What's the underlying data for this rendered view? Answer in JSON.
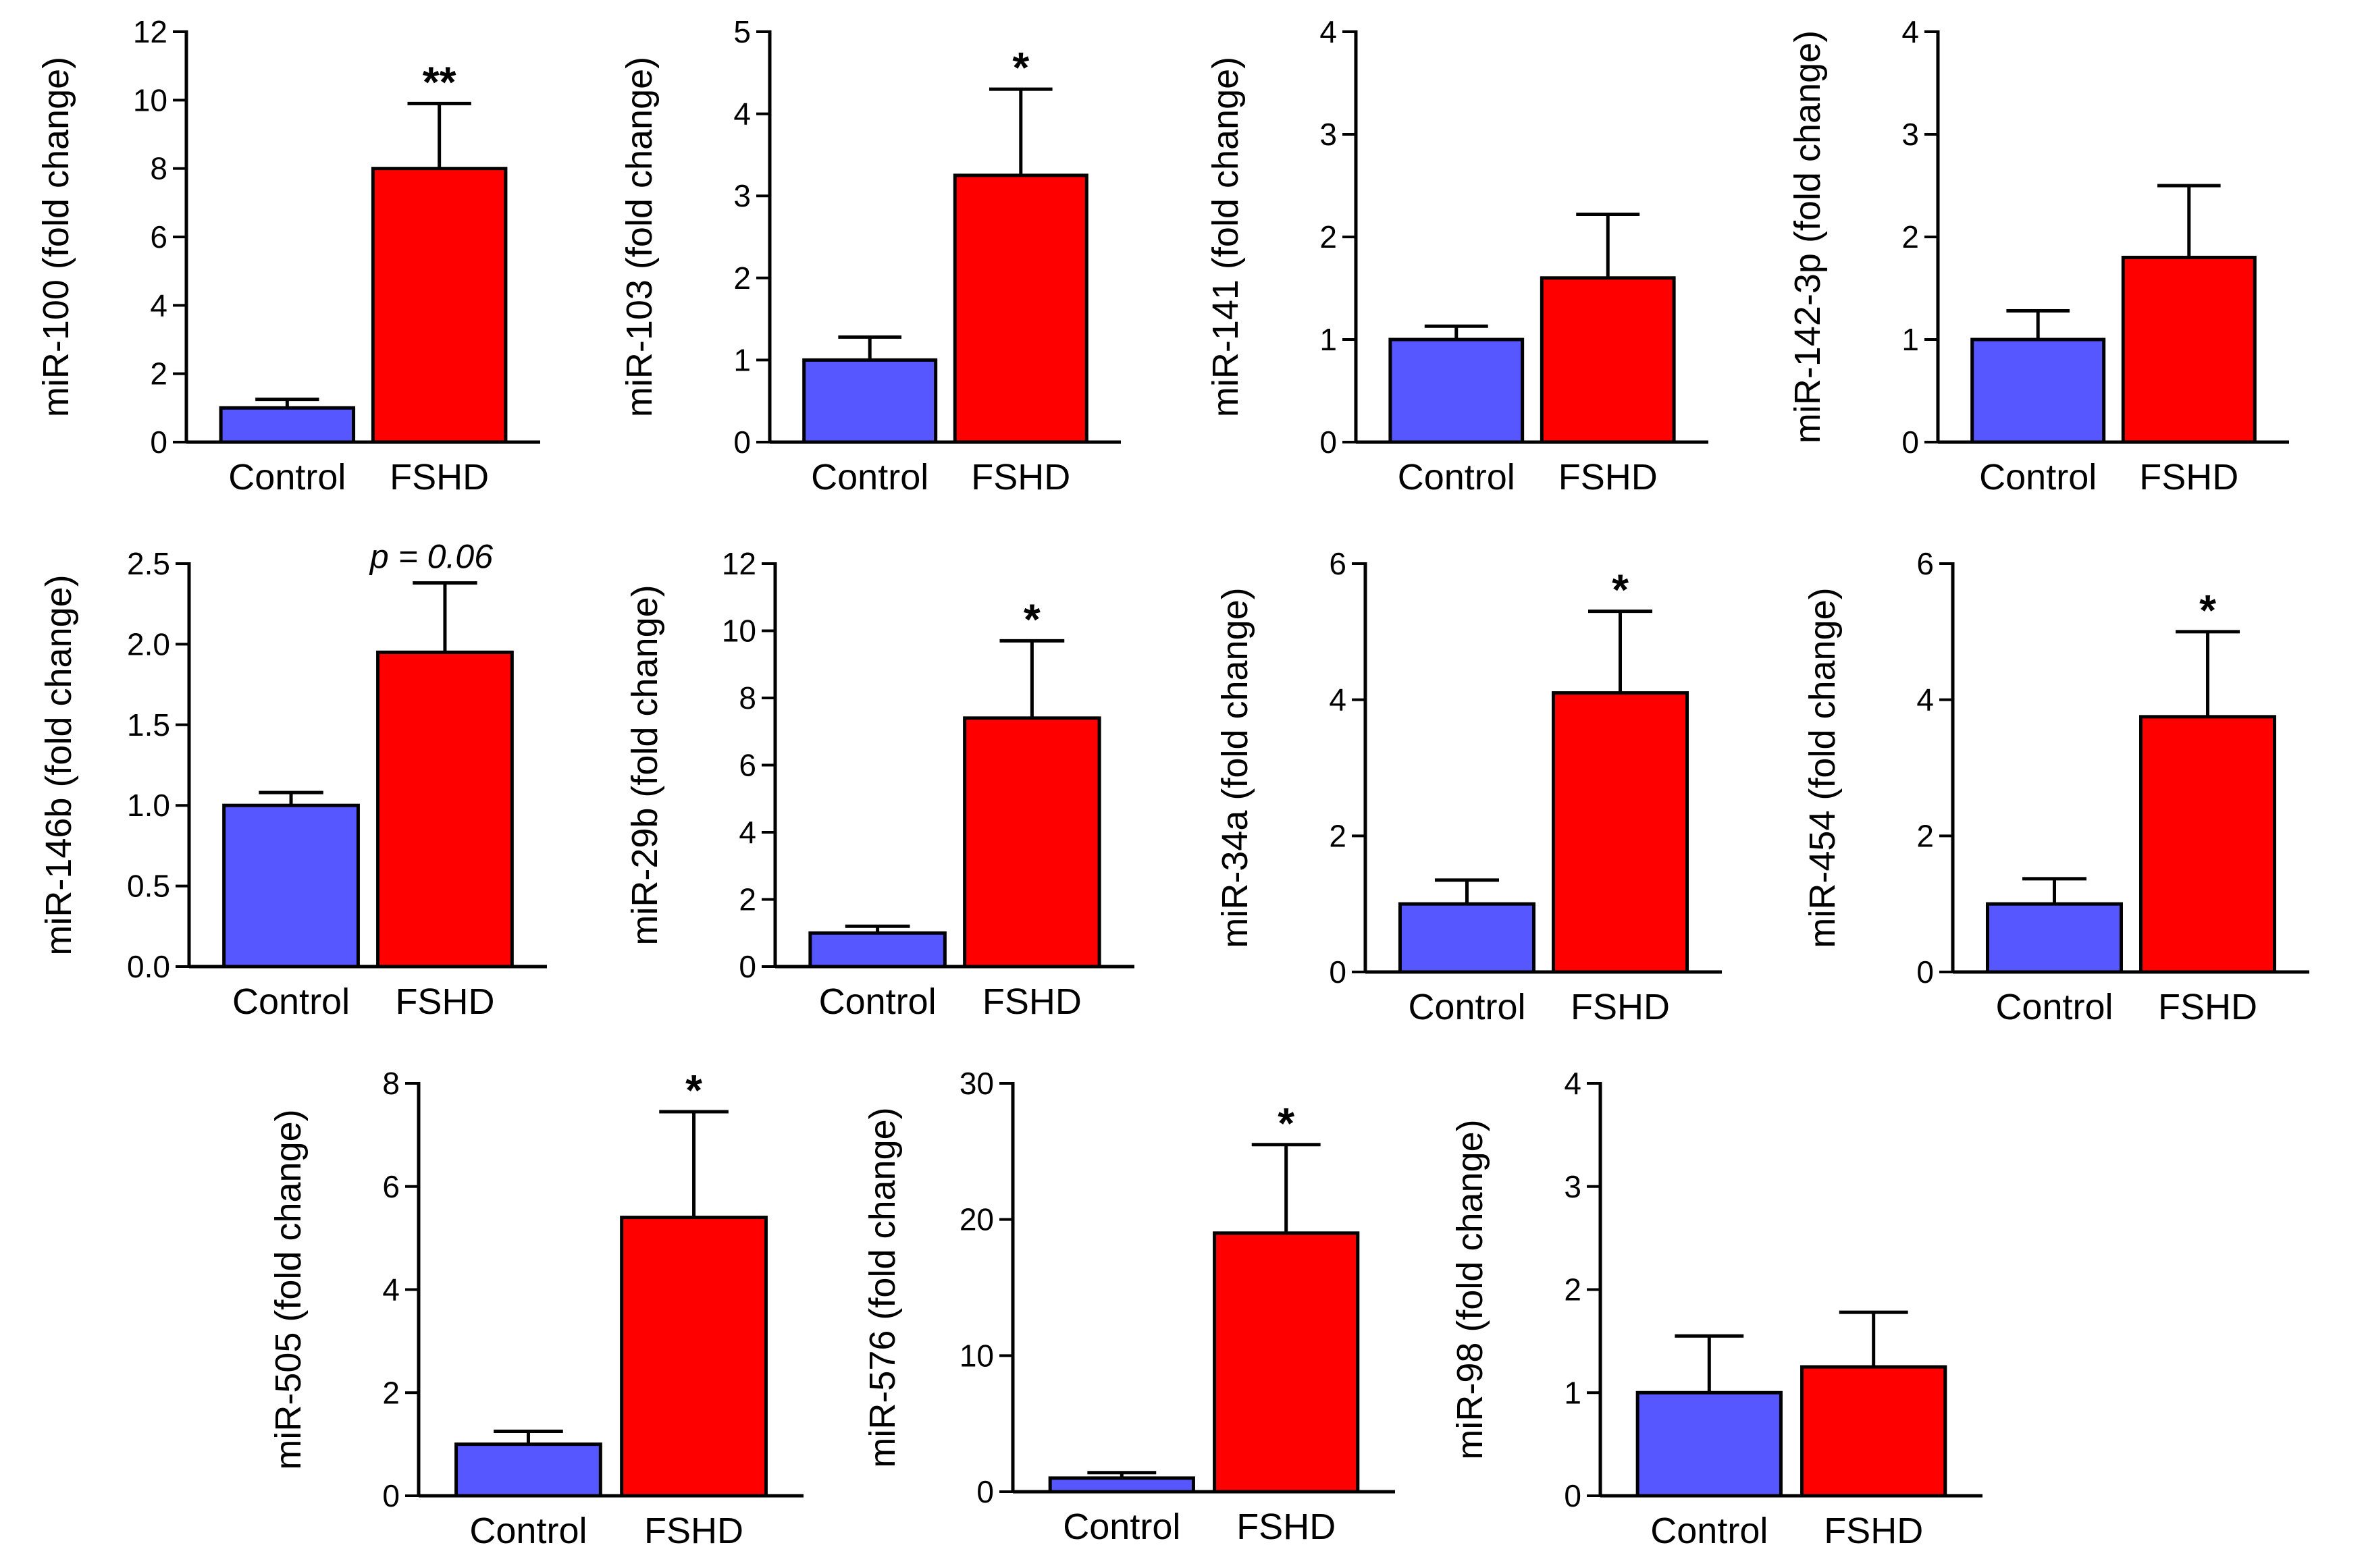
{
  "colors": {
    "control": "#5757FF",
    "fshd": "#FF0000",
    "axis": "#000000"
  },
  "chart_data": [
    {
      "type": "bar",
      "categories": [
        "Control",
        "FSHD"
      ],
      "values": [
        1.0,
        8.0
      ],
      "errors": [
        0.25,
        1.9
      ],
      "ylabel": "miR-100 (fold change)",
      "ylim": [
        0,
        12
      ],
      "yticks": [
        0,
        2,
        4,
        6,
        8,
        10,
        12
      ],
      "annotation": "**",
      "annotation_style": "star"
    },
    {
      "type": "bar",
      "categories": [
        "Control",
        "FSHD"
      ],
      "values": [
        1.0,
        3.25
      ],
      "errors": [
        0.28,
        1.05
      ],
      "ylabel": "miR-103 (fold change)",
      "ylim": [
        0,
        5
      ],
      "yticks": [
        0,
        1,
        2,
        3,
        4,
        5
      ],
      "annotation": "*",
      "annotation_style": "star"
    },
    {
      "type": "bar",
      "categories": [
        "Control",
        "FSHD"
      ],
      "values": [
        1.0,
        1.6
      ],
      "errors": [
        0.13,
        0.62
      ],
      "ylabel": "miR-141 (fold change)",
      "ylim": [
        0,
        4
      ],
      "yticks": [
        0,
        1,
        2,
        3,
        4
      ],
      "annotation": "",
      "annotation_style": "star"
    },
    {
      "type": "bar",
      "categories": [
        "Control",
        "FSHD"
      ],
      "values": [
        1.0,
        1.8
      ],
      "errors": [
        0.28,
        0.7
      ],
      "ylabel": "miR-142-3p (fold change)",
      "ylim": [
        0,
        4
      ],
      "yticks": [
        0,
        1,
        2,
        3,
        4
      ],
      "annotation": "",
      "annotation_style": "star"
    },
    {
      "type": "bar",
      "categories": [
        "Control",
        "FSHD"
      ],
      "values": [
        1.0,
        1.95
      ],
      "errors": [
        0.08,
        0.43
      ],
      "ylabel": "miR-146b (fold change)",
      "ylim": [
        0,
        2.5
      ],
      "yticks": [
        "0.0",
        "0.5",
        "1.0",
        "1.5",
        "2.0",
        "2.5"
      ],
      "annotation": "p = 0.06",
      "annotation_style": "p"
    },
    {
      "type": "bar",
      "categories": [
        "Control",
        "FSHD"
      ],
      "values": [
        1.0,
        7.4
      ],
      "errors": [
        0.2,
        2.3
      ],
      "ylabel": "miR-29b (fold change)",
      "ylim": [
        0,
        12
      ],
      "yticks": [
        0,
        2,
        4,
        6,
        8,
        10,
        12
      ],
      "annotation": "*",
      "annotation_style": "star"
    },
    {
      "type": "bar",
      "categories": [
        "Control",
        "FSHD"
      ],
      "values": [
        1.0,
        4.1
      ],
      "errors": [
        0.35,
        1.2
      ],
      "ylabel": "miR-34a (fold change)",
      "ylim": [
        0,
        6
      ],
      "yticks": [
        0,
        2,
        4,
        6
      ],
      "annotation": "*",
      "annotation_style": "star"
    },
    {
      "type": "bar",
      "categories": [
        "Control",
        "FSHD"
      ],
      "values": [
        1.0,
        3.75
      ],
      "errors": [
        0.37,
        1.25
      ],
      "ylabel": "miR-454 (fold change)",
      "ylim": [
        0,
        6
      ],
      "yticks": [
        0,
        2,
        4,
        6
      ],
      "annotation": "*",
      "annotation_style": "star"
    },
    {
      "type": "bar",
      "categories": [
        "Control",
        "FSHD"
      ],
      "values": [
        1.0,
        5.4
      ],
      "errors": [
        0.25,
        2.05
      ],
      "ylabel": "miR-505 (fold change)",
      "ylim": [
        0,
        8
      ],
      "yticks": [
        0,
        2,
        4,
        6,
        8
      ],
      "annotation": "*",
      "annotation_style": "star"
    },
    {
      "type": "bar",
      "categories": [
        "Control",
        "FSHD"
      ],
      "values": [
        1.0,
        19.0
      ],
      "errors": [
        0.4,
        6.5
      ],
      "ylabel": "miR-576 (fold change)",
      "ylim": [
        0,
        30
      ],
      "yticks": [
        0,
        10,
        20,
        30
      ],
      "annotation": "*",
      "annotation_style": "star"
    },
    {
      "type": "bar",
      "categories": [
        "Control",
        "FSHD"
      ],
      "values": [
        1.0,
        1.25
      ],
      "errors": [
        0.55,
        0.53
      ],
      "ylabel": "miR-98 (fold change)",
      "ylim": [
        0,
        4
      ],
      "yticks": [
        0,
        1,
        2,
        3,
        4
      ],
      "annotation": "",
      "annotation_style": "star"
    }
  ]
}
